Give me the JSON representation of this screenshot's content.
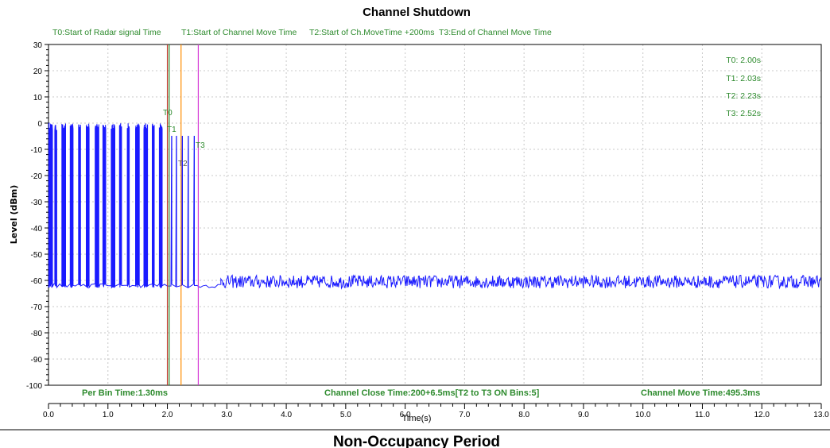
{
  "chart_data": {
    "type": "line",
    "title": "Channel Shutdown",
    "xlabel": "Time(s)",
    "ylabel": "Level (dBm)",
    "xlim": [
      0,
      13
    ],
    "ylim": [
      -100,
      30
    ],
    "x_ticks": [
      0,
      1,
      2,
      3,
      4,
      5,
      6,
      7,
      8,
      9,
      10,
      11,
      12,
      13
    ],
    "x_tick_labels": [
      "0.0",
      "1.0",
      "2.0",
      "3.0",
      "4.0",
      "5.0",
      "6.0",
      "7.0",
      "8.0",
      "9.0",
      "10.0",
      "11.0",
      "12.0",
      "13.0"
    ],
    "y_ticks": [
      30,
      20,
      10,
      0,
      -10,
      -20,
      -30,
      -40,
      -50,
      -60,
      -70,
      -80,
      -90,
      -100
    ],
    "y_tick_labels": [
      "30",
      "20",
      "10",
      "0",
      "-10",
      "-20",
      "-30",
      "-40",
      "-50",
      "-60",
      "-70",
      "-80",
      "-90",
      "-100"
    ],
    "grid": true,
    "colors": {
      "trace": "#1a1aff",
      "legend_text": "#2e8b2e",
      "t0_line": "#c0392b",
      "t1_line": "#2e8b2e",
      "t2_line": "#ff8c00",
      "t3_line": "#d63ad6"
    },
    "legend": [
      "T0:Start of Radar signal Time",
      "T1:Start of Channel Move Time",
      "T2:Start of Ch.MoveTime +200ms",
      "T3:End of Channel Move Time"
    ],
    "markers": [
      {
        "label": "T0",
        "x": 2.0,
        "text": "T0: 2.00s",
        "color": "#c0392b"
      },
      {
        "label": "T1",
        "x": 2.03,
        "text": "T1: 2.03s",
        "color": "#2e8b2e"
      },
      {
        "label": "T2",
        "x": 2.23,
        "text": "T2: 2.23s",
        "color": "#ff8c00"
      },
      {
        "label": "T3",
        "x": 2.52,
        "text": "T3: 2.52s",
        "color": "#d63ad6"
      }
    ],
    "series": [
      {
        "noise_floor": -62,
        "radar_bursts": {
          "x_start": 0.0,
          "x_end": 2.0,
          "peak": 0,
          "floor": -62
        },
        "transmissions_after_radar": [
          2.07,
          2.15,
          2.25,
          2.35,
          2.45
        ],
        "post_move_noise_range": [
          -63,
          -58
        ]
      }
    ],
    "footer": {
      "per_bin": "Per Bin Time:1.30ms",
      "close_time": "Channel Close Time:200+6.5ms[T2 to T3 ON Bins:5]",
      "move_time": "Channel Move Time:495.3ms"
    }
  },
  "caption": "Non-Occupancy Period"
}
